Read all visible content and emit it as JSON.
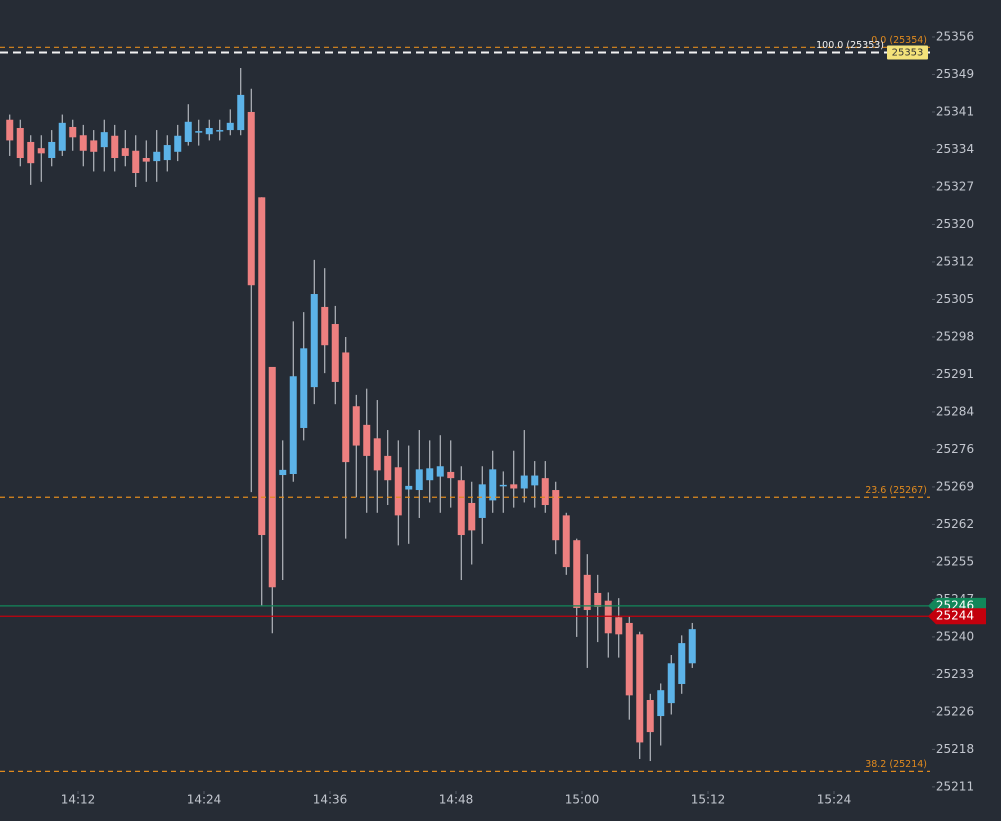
{
  "chart_data": {
    "type": "candlestick",
    "up_color": "#5cb3e8",
    "down_color": "#ee8080",
    "wick_color": "#cfd2d8",
    "ylim": [
      25210.4,
      25363.15
    ],
    "yticks": [
      25356,
      {
        "value": 25348.75,
        "label": "25349"
      },
      {
        "value": 25341.5,
        "label": "25341"
      },
      {
        "value": 25334.25,
        "label": "25334"
      },
      25327,
      {
        "value": 25319.75,
        "label": "25320"
      },
      {
        "value": 25312.5,
        "label": "25312"
      },
      {
        "value": 25305.25,
        "label": "25305"
      },
      25298,
      {
        "value": 25290.75,
        "label": "25291"
      },
      {
        "value": 25283.5,
        "label": "25284"
      },
      {
        "value": 25276.25,
        "label": "25276"
      },
      25269,
      {
        "value": 25261.75,
        "label": "25262"
      },
      {
        "value": 25254.5,
        "label": "25255"
      },
      {
        "value": 25247.25,
        "label": "25247"
      },
      25240,
      {
        "value": 25232.75,
        "label": "25233"
      },
      {
        "value": 25225.5,
        "label": "25226"
      },
      {
        "value": 25218.25,
        "label": "25218"
      },
      25211
    ],
    "xticks": [
      "14:12",
      "14:24",
      "14:36",
      "14:48",
      "15:00",
      "15:12",
      "15:24"
    ],
    "x": [
      "14:05",
      "14:06",
      "14:07",
      "14:08",
      "14:09",
      "14:10",
      "14:11",
      "14:12",
      "14:13",
      "14:14",
      "14:15",
      "14:16",
      "14:17",
      "14:18",
      "14:19",
      "14:20",
      "14:21",
      "14:22",
      "14:23",
      "14:24",
      "14:25",
      "14:26",
      "14:27",
      "14:28",
      "14:29",
      "14:30",
      "14:31",
      "14:32",
      "14:33",
      "14:34",
      "14:35",
      "14:36",
      "14:37",
      "14:38",
      "14:39",
      "14:40",
      "14:41",
      "14:42",
      "14:43",
      "14:44",
      "14:45",
      "14:46",
      "14:47",
      "14:48",
      "14:49",
      "14:50",
      "14:51",
      "14:52",
      "14:53",
      "14:54",
      "14:55",
      "14:56",
      "14:57",
      "14:58",
      "14:59",
      "15:00",
      "15:01",
      "15:02",
      "15:03",
      "15:04",
      "15:05",
      "15:06",
      "15:07",
      "15:08",
      "15:09",
      "15:10"
    ],
    "open": [
      25340,
      25338.4,
      25335.7,
      25334.5,
      25332.6,
      25334,
      25338.6,
      25337,
      25336,
      25334.7,
      25336.9,
      25334.5,
      25334,
      25332.6,
      25332,
      25332.2,
      25333.8,
      25335.7,
      25337.5,
      25337.2,
      25337.8,
      25338,
      25338,
      25341.5,
      25325,
      25292.2,
      25271.3,
      25271.5,
      25280.4,
      25288.3,
      25303.8,
      25300.5,
      25295,
      25284.6,
      25281,
      25278.4,
      25275,
      25272.8,
      25268.5,
      25268.4,
      25270.3,
      25271,
      25271.9,
      25270.3,
      25265.9,
      25263,
      25266.4,
      25269.3,
      25269.5,
      25268.7,
      25269.3,
      25270.7,
      25268.4,
      25263.5,
      25258.7,
      25252,
      25248.5,
      25247,
      25243.8,
      25242.7,
      25240.5,
      25227.8,
      25224.7,
      25227.2,
      25230.9,
      25234.9
    ],
    "high": [
      25341,
      25340,
      25337,
      25337,
      25338,
      25341,
      25340,
      25339,
      25338,
      25340,
      25339,
      25338,
      25337,
      25336,
      25338,
      25337,
      25339,
      25343,
      25340,
      25340,
      25340,
      25342,
      25350,
      25346,
      25325,
      25292.2,
      25278,
      25301,
      25302.8,
      25312.9,
      25311.3,
      25304,
      25298,
      25286.8,
      25288,
      25285.8,
      25280,
      25278,
      25277,
      25280,
      25278,
      25279,
      25278,
      25273,
      25270,
      25273,
      25276,
      25272,
      25276,
      25280,
      25274,
      25274,
      25270,
      25264,
      25259,
      25256,
      25252,
      25248.6,
      25247.5,
      25244,
      25241,
      25229,
      25231,
      25236.5,
      25240.3,
      25242.7
    ],
    "low": [
      25333,
      25331,
      25327.4,
      25328,
      25331,
      25333,
      25334,
      25331,
      25330,
      25330,
      25330,
      25331,
      25327,
      25328,
      25328,
      25330,
      25332,
      25335,
      25335,
      25336,
      25336,
      25337,
      25337,
      25268,
      25246,
      25240.7,
      25251,
      25270,
      25278,
      25285,
      25291,
      25285,
      25259,
      25267,
      25264,
      25264,
      25265.5,
      25257.7,
      25258,
      25263,
      25266,
      25264,
      25265,
      25251,
      25254,
      25258,
      25264,
      25264,
      25265,
      25266,
      25265,
      25264,
      25256,
      25252,
      25240,
      25234,
      25239,
      25236,
      25236,
      25224,
      25216.4,
      25216,
      25219,
      25225,
      25229,
      25234
    ],
    "close": [
      25336,
      25332.6,
      25331.6,
      25333.5,
      25335.7,
      25339.4,
      25336.6,
      25334,
      25333.8,
      25337.6,
      25332.6,
      25333,
      25329.7,
      25331.9,
      25333.8,
      25335.1,
      25336.9,
      25339.6,
      25337.8,
      25338.4,
      25338,
      25339.4,
      25344.8,
      25308,
      25259.7,
      25249.6,
      25272.3,
      25290.4,
      25295.8,
      25306.3,
      25296.4,
      25289.3,
      25273.8,
      25277,
      25275,
      25272.2,
      25270.3,
      25263.5,
      25269.2,
      25272.4,
      25272.6,
      25273,
      25270.7,
      25259.7,
      25260.6,
      25269.5,
      25272.4,
      25269.4,
      25268.7,
      25271.2,
      25271.2,
      25265.5,
      25258.7,
      25253.5,
      25245.6,
      25245.2,
      25245.8,
      25240.7,
      25240.5,
      25228.7,
      25219.6,
      25221.6,
      25229.7,
      25234.9,
      25238.8,
      25241.5
    ],
    "levels": [
      {
        "label": "0.0 (25354)",
        "value": 25354,
        "color": "#e08a1e"
      },
      {
        "label": "100.0 (25353)",
        "value": 25353,
        "color": "#f2f2f2",
        "tag": "25353"
      },
      {
        "label": "23.6 (25267)",
        "value": 25267,
        "color": "#e08a1e"
      },
      {
        "label": "38.2 (25214)",
        "value": 25214,
        "color": "#e08a1e"
      }
    ],
    "price_tags": [
      {
        "value": 25246,
        "color": "#12875a"
      },
      {
        "value": 25244,
        "color": "#c3000d"
      }
    ]
  }
}
